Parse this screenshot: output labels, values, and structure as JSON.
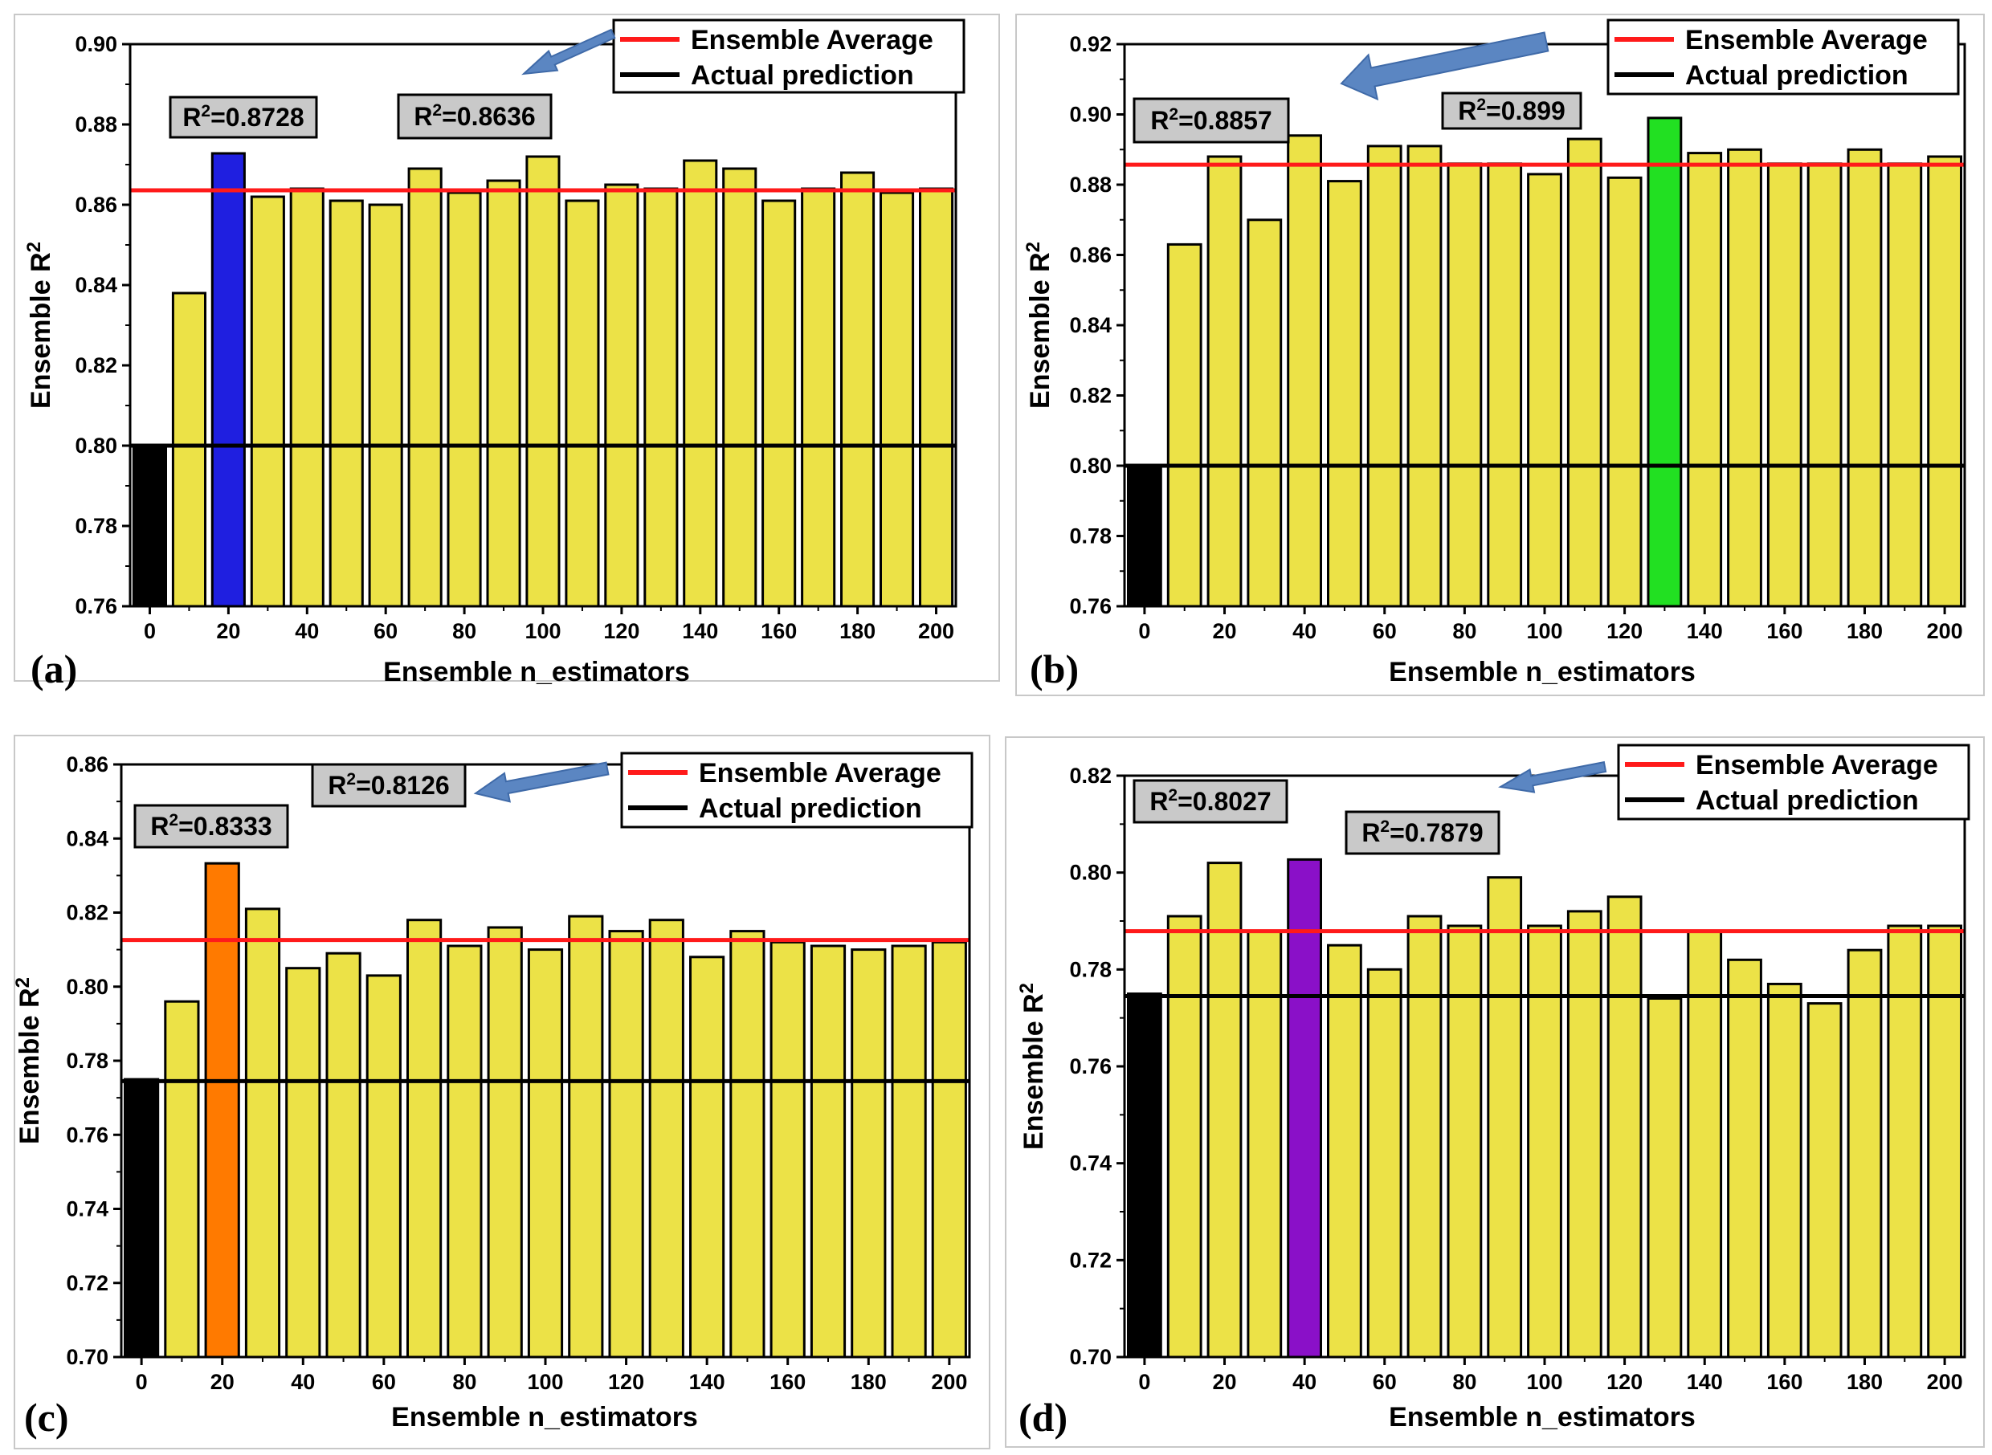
{
  "colors": {
    "bar_default": "#ece247",
    "bar_actual": "#000000",
    "ensemble_average_line": "#ff1a1a",
    "actual_prediction_line": "#000000",
    "annotation_box": "#c9c9c9",
    "arrow": "#5b86c2"
  },
  "chart_data": [
    {
      "panel": "(a)",
      "type": "bar",
      "xlabel": "Ensemble n_estimators",
      "ylabel": "Ensemble R",
      "ylabel_superscript": "2",
      "ylim": [
        0.76,
        0.9
      ],
      "yticks": [
        "0.76",
        "0.78",
        "0.80",
        "0.82",
        "0.84",
        "0.86",
        "0.88",
        "0.90"
      ],
      "xticks": [
        "0",
        "20",
        "40",
        "60",
        "80",
        "100",
        "120",
        "140",
        "160",
        "180",
        "200"
      ],
      "x": [
        0,
        10,
        20,
        30,
        40,
        50,
        60,
        70,
        80,
        90,
        100,
        110,
        120,
        130,
        140,
        150,
        160,
        170,
        180,
        190,
        200
      ],
      "values": [
        0.8,
        0.838,
        0.8728,
        0.862,
        0.864,
        0.861,
        0.86,
        0.869,
        0.863,
        0.866,
        0.872,
        0.861,
        0.865,
        0.864,
        0.871,
        0.869,
        0.861,
        0.864,
        0.868,
        0.863,
        0.864
      ],
      "highlight_index": 2,
      "highlight_color": "#1f1fe0",
      "ensemble_average": 0.8636,
      "actual_prediction": 0.8,
      "legend": [
        "Ensemble Average",
        "Actual prediction"
      ],
      "annotations": [
        {
          "prefix": "R",
          "sup": "2",
          "value": "=0.8728"
        },
        {
          "prefix": "R",
          "sup": "2",
          "value": "=0.8636"
        }
      ]
    },
    {
      "panel": "(b)",
      "type": "bar",
      "xlabel": "Ensemble n_estimators",
      "ylabel": "Ensemble R",
      "ylabel_superscript": "2",
      "ylim": [
        0.76,
        0.92
      ],
      "yticks": [
        "0.76",
        "0.78",
        "0.80",
        "0.82",
        "0.84",
        "0.86",
        "0.88",
        "0.90",
        "0.92"
      ],
      "xticks": [
        "0",
        "20",
        "40",
        "60",
        "80",
        "100",
        "120",
        "140",
        "160",
        "180",
        "200"
      ],
      "x": [
        0,
        10,
        20,
        30,
        40,
        50,
        60,
        70,
        80,
        90,
        100,
        110,
        120,
        130,
        140,
        150,
        160,
        170,
        180,
        190,
        200
      ],
      "values": [
        0.8,
        0.863,
        0.888,
        0.87,
        0.894,
        0.881,
        0.891,
        0.891,
        0.886,
        0.886,
        0.883,
        0.893,
        0.882,
        0.899,
        0.889,
        0.89,
        0.886,
        0.886,
        0.89,
        0.886,
        0.888
      ],
      "highlight_index": 13,
      "highlight_color": "#22e022",
      "ensemble_average": 0.8857,
      "actual_prediction": 0.8,
      "legend": [
        "Ensemble Average",
        "Actual prediction"
      ],
      "annotations": [
        {
          "prefix": "R",
          "sup": "2",
          "value": "=0.8857"
        },
        {
          "prefix": "R",
          "sup": "2",
          "value": "=0.899"
        }
      ]
    },
    {
      "panel": "(c)",
      "type": "bar",
      "xlabel": "Ensemble n_estimators",
      "ylabel": "Ensemble R",
      "ylabel_superscript": "2",
      "ylim": [
        0.7,
        0.86
      ],
      "yticks": [
        "0.70",
        "0.72",
        "0.74",
        "0.76",
        "0.78",
        "0.80",
        "0.82",
        "0.84",
        "0.86"
      ],
      "xticks": [
        "0",
        "20",
        "40",
        "60",
        "80",
        "100",
        "120",
        "140",
        "160",
        "180",
        "200"
      ],
      "x": [
        0,
        10,
        20,
        30,
        40,
        50,
        60,
        70,
        80,
        90,
        100,
        110,
        120,
        130,
        140,
        150,
        160,
        170,
        180,
        190,
        200
      ],
      "values": [
        0.775,
        0.796,
        0.8333,
        0.821,
        0.805,
        0.809,
        0.803,
        0.818,
        0.811,
        0.816,
        0.81,
        0.819,
        0.815,
        0.818,
        0.808,
        0.815,
        0.812,
        0.811,
        0.81,
        0.811,
        0.812
      ],
      "highlight_index": 2,
      "highlight_color": "#ff7a00",
      "ensemble_average": 0.8126,
      "actual_prediction": 0.7745,
      "legend": [
        "Ensemble Average",
        "Actual prediction"
      ],
      "annotations": [
        {
          "prefix": "R",
          "sup": "2",
          "value": "=0.8333"
        },
        {
          "prefix": "R",
          "sup": "2",
          "value": "=0.8126"
        }
      ]
    },
    {
      "panel": "(d)",
      "type": "bar",
      "xlabel": "Ensemble n_estimators",
      "ylabel": "Ensemble R",
      "ylabel_superscript": "2",
      "ylim": [
        0.7,
        0.82
      ],
      "yticks": [
        "0.70",
        "0.72",
        "0.74",
        "0.76",
        "0.78",
        "0.80",
        "0.82"
      ],
      "xticks": [
        "0",
        "20",
        "40",
        "60",
        "80",
        "100",
        "120",
        "140",
        "160",
        "180",
        "200"
      ],
      "x": [
        0,
        10,
        20,
        30,
        40,
        50,
        60,
        70,
        80,
        90,
        100,
        110,
        120,
        130,
        140,
        150,
        160,
        170,
        180,
        190,
        200
      ],
      "values": [
        0.775,
        0.791,
        0.802,
        0.788,
        0.8027,
        0.785,
        0.78,
        0.791,
        0.789,
        0.799,
        0.789,
        0.792,
        0.795,
        0.774,
        0.788,
        0.782,
        0.777,
        0.773,
        0.784,
        0.789,
        0.789
      ],
      "highlight_index": 4,
      "highlight_color": "#8a10c8",
      "ensemble_average": 0.7879,
      "actual_prediction": 0.7745,
      "legend": [
        "Ensemble Average",
        "Actual prediction"
      ],
      "annotations": [
        {
          "prefix": "R",
          "sup": "2",
          "value": "=0.8027"
        },
        {
          "prefix": "R",
          "sup": "2",
          "value": "=0.7879"
        }
      ]
    }
  ]
}
